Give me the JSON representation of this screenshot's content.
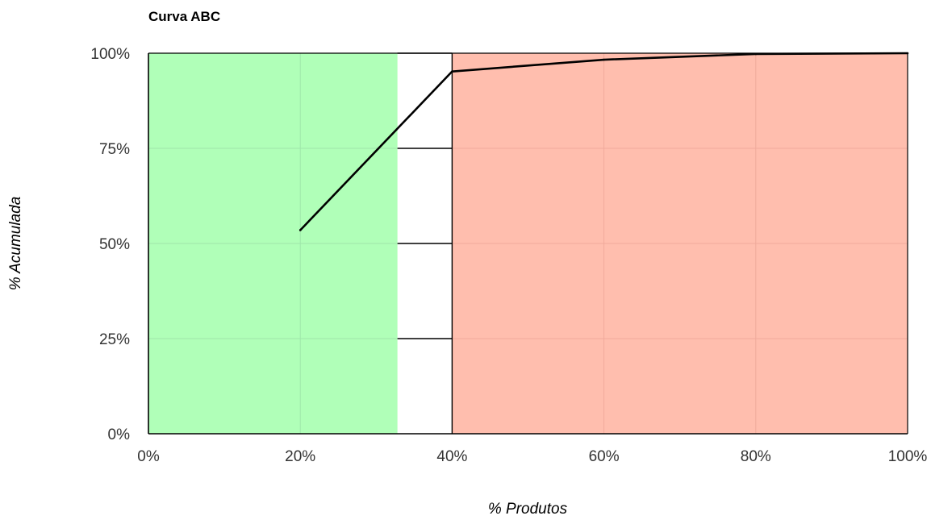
{
  "chart_data": {
    "type": "line",
    "title": "Curva ABC",
    "xlabel": "% Produtos",
    "ylabel": "% Acumulada",
    "xlim": [
      0,
      100
    ],
    "ylim": [
      0,
      100
    ],
    "x_ticks": [
      0,
      20,
      40,
      60,
      80,
      100
    ],
    "x_tick_labels": [
      "0%",
      "20%",
      "40%",
      "60%",
      "80%",
      "100%"
    ],
    "y_ticks": [
      0,
      25,
      50,
      75,
      100
    ],
    "y_tick_labels": [
      "0%",
      "25%",
      "50%",
      "75%",
      "100%"
    ],
    "grid": true,
    "regions": [
      {
        "x_start": 0,
        "x_end": 32.8,
        "color": "#b0ffb8"
      },
      {
        "x_start": 40,
        "x_end": 100,
        "color": "#ffbeae"
      }
    ],
    "series": [
      {
        "x": [
          20,
          40,
          60,
          80,
          100
        ],
        "y": [
          53.5,
          95.2,
          98.3,
          99.8,
          100
        ],
        "color": "#000000"
      }
    ],
    "colors": {
      "line": "#000000",
      "region_a": "#b0ffb8",
      "region_c": "#ffbeae",
      "grid_light": "#9fe6aa",
      "grid_light_c": "#f0aa9c",
      "axis": "#000000"
    }
  }
}
